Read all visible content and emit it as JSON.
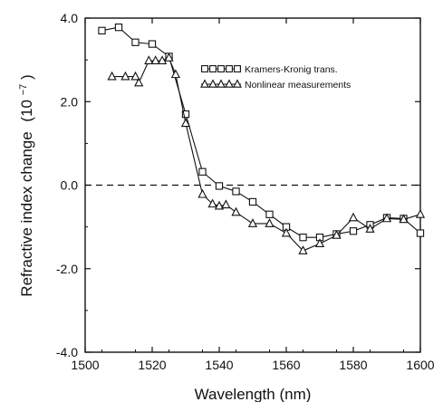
{
  "chart_data": {
    "type": "line",
    "xlabel": "Wavelength (nm)",
    "ylabel_main": "Refractive index change",
    "ylabel_unit": "(10",
    "ylabel_exp": "−7",
    "ylabel_close": ")",
    "xlim": [
      1500,
      1600
    ],
    "ylim": [
      -4.0,
      4.0
    ],
    "x_ticks": [
      1500,
      1520,
      1540,
      1560,
      1580,
      1600
    ],
    "x_tick_labels": [
      "1500",
      "1520",
      "1540",
      "1560",
      "1580",
      "1600"
    ],
    "y_ticks": [
      -4.0,
      -2.0,
      0.0,
      2.0,
      4.0
    ],
    "y_tick_labels": [
      "-4.0",
      "-2.0",
      "0.0",
      "2.0",
      "4.0"
    ],
    "zero_line": true,
    "legend_position": "top-right",
    "series": [
      {
        "name": "Kramers-Kronig trans.",
        "marker": "square",
        "x": [
          1505,
          1510,
          1515,
          1520,
          1525,
          1530,
          1535,
          1540,
          1545,
          1550,
          1555,
          1560,
          1565,
          1570,
          1575,
          1580,
          1585,
          1590,
          1595,
          1600
        ],
        "y": [
          3.7,
          3.78,
          3.42,
          3.38,
          3.08,
          1.7,
          0.32,
          -0.02,
          -0.15,
          -0.4,
          -0.7,
          -1.0,
          -1.25,
          -1.25,
          -1.17,
          -1.1,
          -0.95,
          -0.78,
          -0.8,
          -1.15
        ]
      },
      {
        "name": "Nonlinear measurements",
        "marker": "triangle",
        "x": [
          1508,
          1512,
          1515,
          1516,
          1519,
          1521,
          1523,
          1525,
          1527,
          1530,
          1535,
          1538,
          1540,
          1542,
          1545,
          1550,
          1555,
          1560,
          1565,
          1570,
          1575,
          1580,
          1585,
          1590,
          1595,
          1600
        ],
        "y": [
          2.6,
          2.6,
          2.6,
          2.45,
          2.98,
          2.98,
          2.98,
          3.05,
          2.65,
          1.48,
          -0.22,
          -0.45,
          -0.5,
          -0.47,
          -0.65,
          -0.92,
          -0.92,
          -1.15,
          -1.57,
          -1.4,
          -1.2,
          -0.78,
          -1.05,
          -0.8,
          -0.82,
          -0.7
        ]
      }
    ]
  }
}
